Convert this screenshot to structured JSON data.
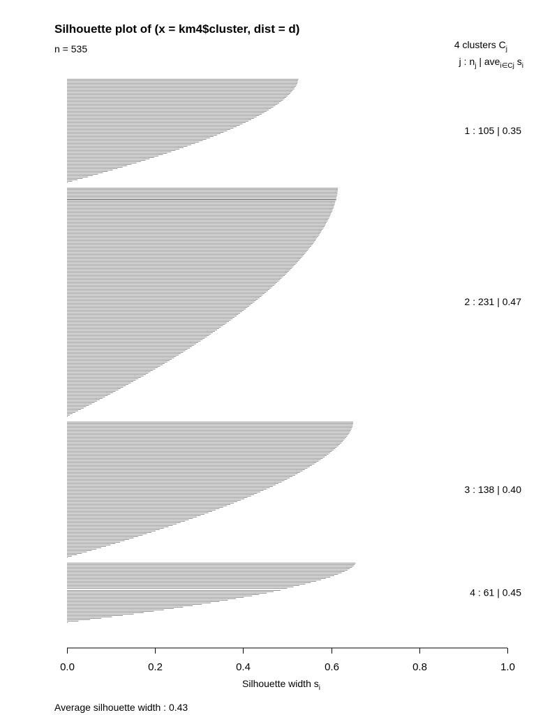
{
  "chart_data": {
    "type": "bar",
    "orientation": "horizontal",
    "title": "Silhouette plot of (x = km4$cluster, dist = d)",
    "n_label": "n = 535",
    "n": 535,
    "legend": {
      "clusters_label": "4  clusters  C",
      "clusters_sub": "j",
      "header_j": "j :  n",
      "header_nj_sub": "j",
      "header_ave": " | ave",
      "header_ave_sub": "i∈Cj",
      "header_si": "  s",
      "header_si_sub": "i"
    },
    "xlabel": "Silhouette width s",
    "xlabel_sub": "i",
    "xlim": [
      0,
      1
    ],
    "xticks": [
      "0.0",
      "0.2",
      "0.4",
      "0.6",
      "0.8",
      "1.0"
    ],
    "average_label": "Average silhouette width :  0.43",
    "average_silhouette_width": 0.43,
    "clusters": [
      {
        "j": 1,
        "n": 105,
        "ave": 0.35,
        "label": "1 :   105  |  0.35",
        "max": 0.525,
        "min": 0.0
      },
      {
        "j": 2,
        "n": 231,
        "ave": 0.47,
        "label": "2 :   231  |  0.47",
        "max": 0.615,
        "min": 0.0
      },
      {
        "j": 3,
        "n": 138,
        "ave": 0.4,
        "label": "3 :   138  |  0.40",
        "max": 0.65,
        "min": 0.0
      },
      {
        "j": 4,
        "n": 61,
        "ave": 0.45,
        "label": "4 :   61  |  0.45",
        "max": 0.655,
        "min": 0.0
      }
    ],
    "bar_color": "#8c8c8c",
    "grid": false
  }
}
